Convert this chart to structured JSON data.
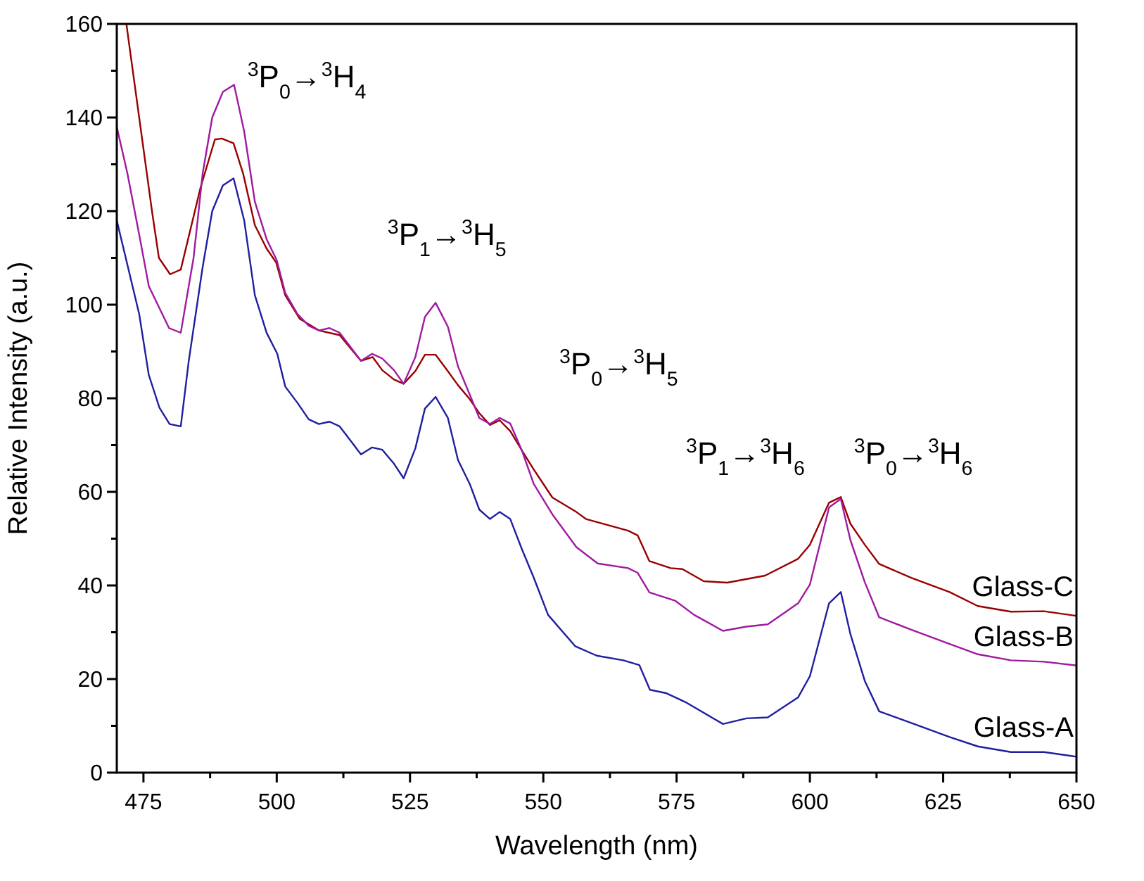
{
  "chart_data": {
    "type": "line",
    "xlabel": "Wavelength (nm)",
    "ylabel": "Relative Intensity (a.u.)",
    "xlim": [
      470,
      650
    ],
    "ylim": [
      0,
      160
    ],
    "xticks": [
      475,
      {
        "value": 487.5,
        "label": null
      },
      500,
      {
        "value": 512.5,
        "label": null
      },
      525,
      {
        "value": 537.5,
        "label": null
      },
      550,
      {
        "value": 562.5,
        "label": null
      },
      575,
      {
        "value": 587.5,
        "label": null
      },
      600,
      {
        "value": 612.5,
        "label": null
      },
      625,
      {
        "value": 637.5,
        "label": null
      },
      650
    ],
    "yticks": [
      0,
      {
        "value": 10,
        "label": null
      },
      20,
      {
        "value": 30,
        "label": null
      },
      40,
      {
        "value": 50,
        "label": null
      },
      60,
      {
        "value": 70,
        "label": null
      },
      80,
      {
        "value": 90,
        "label": null
      },
      100,
      {
        "value": 110,
        "label": null
      },
      120,
      {
        "value": 130,
        "label": null
      },
      140,
      {
        "value": 150,
        "label": null
      },
      160
    ],
    "grid": false,
    "legend": false,
    "marker": "none",
    "line_style": "solid",
    "annotations": [
      "$^{3}$P$_{0}$→$^{3}$H$_{4}$",
      "$^{3}$P$_{1}$→$^{3}$H$_{5}$",
      "$^{3}$P$_{0}$→$^{3}$H$_{5}$",
      "$^{3}$P$_{1}$→$^{3}$H$_{6}$",
      "$^{3}$P$_{0}$→$^{3}$H$_{6}$"
    ],
    "series": [
      {
        "name": "Glass-C",
        "color": "#990000",
        "x": [
          471.8,
          476.6,
          477.9,
          480,
          482,
          485.7,
          488.4,
          489.7,
          491.9,
          493.7,
          495.9,
          498.1,
          499.9,
          501.6,
          504.3,
          507.9,
          511.8,
          515.8,
          518,
          519.8,
          522,
          523.8,
          526,
          527.8,
          529.8,
          532.1,
          534,
          536.2,
          538,
          540,
          541.8,
          543.8,
          546,
          548.2,
          551.7,
          556.2,
          558,
          565.9,
          567.7,
          569.9,
          573.9,
          576.1,
          580.1,
          584.5,
          591.6,
          597.8,
          600,
          603.6,
          605.8,
          607.6,
          610.3,
          613,
          619.1,
          626.2,
          631.5,
          637.7,
          643.9,
          650
        ],
        "values": [
          160,
          120,
          110,
          106.5,
          107.5,
          125,
          135.3,
          135.5,
          134.5,
          128,
          117,
          112,
          109,
          102,
          97,
          94.5,
          93.5,
          88,
          88.8,
          86,
          84,
          83.1,
          85.8,
          89.3,
          89.3,
          85.8,
          82.8,
          79.8,
          76.8,
          74.3,
          75.3,
          73,
          68.8,
          64.8,
          58.8,
          55.7,
          54.2,
          51.7,
          50.7,
          45.2,
          43.7,
          43.5,
          40.9,
          40.6,
          42.1,
          45.7,
          48.7,
          57.7,
          58.9,
          53.2,
          48.7,
          44.6,
          41.6,
          38.6,
          35.6,
          34.4,
          34.5,
          33.5
        ]
      },
      {
        "name": "Glass-B",
        "color": "#a01aa0",
        "x": [
          470,
          472,
          474.2,
          476,
          479.8,
          482,
          484.4,
          486.1,
          487.9,
          489.9,
          492,
          493.9,
          495.9,
          498.1,
          500,
          501.6,
          503.9,
          506,
          507.9,
          509.9,
          511.8,
          513.8,
          515.8,
          517.9,
          519.8,
          522,
          523.8,
          526,
          527.8,
          529.8,
          532.1,
          534,
          536.2,
          538,
          540,
          541.8,
          543.8,
          546,
          548.2,
          551.7,
          556.2,
          560.2,
          565.9,
          567.7,
          569.9,
          574.8,
          578.3,
          583.7,
          588.1,
          592.1,
          597.8,
          600,
          603.6,
          605.8,
          607.6,
          610.3,
          613,
          619.1,
          626.2,
          631.5,
          637.7,
          643.9,
          650
        ],
        "values": [
          138,
          128,
          115,
          104,
          95,
          94,
          110,
          128,
          140,
          145.5,
          147,
          137,
          122,
          114,
          109.5,
          102.5,
          98,
          95.5,
          94.5,
          95,
          94,
          91,
          88,
          89.5,
          88.5,
          86,
          83.1,
          88.8,
          97.4,
          100.4,
          95.3,
          86.8,
          80.8,
          75.8,
          74.5,
          75.8,
          74.6,
          68.8,
          61.7,
          55.2,
          48.2,
          44.7,
          43.7,
          42.7,
          38.5,
          36.7,
          33.7,
          30.3,
          31.2,
          31.7,
          36.2,
          40.2,
          56.7,
          58.5,
          49.7,
          40.7,
          33.2,
          30.5,
          27.5,
          25.3,
          24,
          23.7,
          22.9
        ]
      },
      {
        "name": "Glass-A",
        "color": "#1f1fa0",
        "x": [
          470,
          472.1,
          474.2,
          476,
          478,
          479.9,
          482,
          483.5,
          486.1,
          487.9,
          489.9,
          491.9,
          493.9,
          495.9,
          498.1,
          500.1,
          501.6,
          503.9,
          506,
          507.9,
          509.9,
          511.8,
          513.8,
          515.8,
          517.9,
          519.8,
          522,
          523.8,
          526,
          527.8,
          529.8,
          532.1,
          534,
          536.2,
          538,
          540,
          541.8,
          543.8,
          546,
          548.2,
          550.9,
          556,
          560,
          565,
          568,
          570,
          573,
          576.6,
          583.7,
          588.1,
          592.1,
          597.8,
          600,
          603.6,
          605.8,
          607.6,
          610.3,
          613,
          619.1,
          626.2,
          631.5,
          637.7,
          643.9,
          650
        ],
        "values": [
          118,
          108,
          98,
          85,
          78,
          74.5,
          74,
          88,
          108,
          120,
          125.5,
          127,
          118,
          102,
          94,
          89.5,
          82.5,
          79,
          75.5,
          74.5,
          75,
          74,
          71,
          68,
          69.5,
          69,
          66,
          62.9,
          69.3,
          77.8,
          80.3,
          75.8,
          66.8,
          61.7,
          56.2,
          54.2,
          55.7,
          54.2,
          47.7,
          41.7,
          33.7,
          27,
          25,
          24,
          23,
          17.7,
          17,
          15.1,
          10.4,
          11.6,
          11.8,
          16.1,
          20.6,
          36.2,
          38.6,
          29.6,
          19.6,
          13.1,
          10.6,
          7.6,
          5.6,
          4.4,
          4.4,
          3.4
        ]
      }
    ]
  }
}
